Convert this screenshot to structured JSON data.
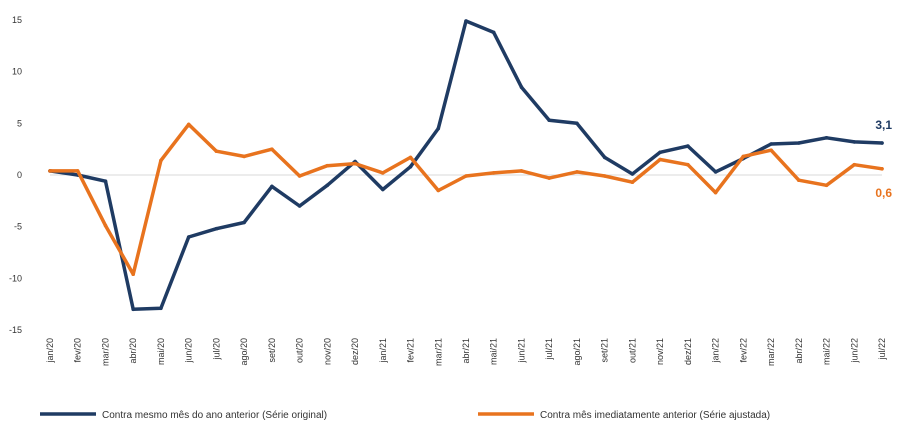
{
  "chart_data": {
    "type": "line",
    "categories": [
      "jan/20",
      "fev/20",
      "mar/20",
      "abr/20",
      "mai/20",
      "jun/20",
      "jul/20",
      "ago/20",
      "set/20",
      "out/20",
      "nov/20",
      "dez/20",
      "jan/21",
      "fev/21",
      "mar/21",
      "abr/21",
      "mai/21",
      "jun/21",
      "jul/21",
      "ago/21",
      "set/21",
      "out/21",
      "nov/21",
      "dez/21",
      "jan/22",
      "fev/22",
      "mar/22",
      "abr/22",
      "mai/22",
      "jun/22",
      "jul/22"
    ],
    "series": [
      {
        "name": "Contra mesmo mês do ano anterior (Série original)",
        "color": "#1f3b63",
        "values": [
          0.4,
          0.0,
          -0.6,
          -13.0,
          -12.9,
          -6.0,
          -5.2,
          -4.6,
          -1.1,
          -3.0,
          -1.0,
          1.3,
          -1.4,
          0.8,
          4.5,
          14.9,
          13.8,
          8.5,
          5.3,
          5.0,
          1.7,
          0.1,
          2.2,
          2.8,
          0.3,
          1.6,
          3.0,
          3.1,
          3.6,
          3.2,
          3.1
        ],
        "end_label": "3,1"
      },
      {
        "name": "Contra mês imediatamente anterior (Série ajustada)",
        "color": "#e8731e",
        "values": [
          0.4,
          0.4,
          -4.9,
          -9.6,
          1.4,
          4.9,
          2.3,
          1.8,
          2.5,
          -0.1,
          0.9,
          1.1,
          0.2,
          1.7,
          -1.5,
          -0.1,
          0.2,
          0.4,
          -0.3,
          0.3,
          -0.1,
          -0.7,
          1.5,
          1.0,
          -1.7,
          1.8,
          2.4,
          -0.5,
          -1.0,
          1.0,
          0.6
        ],
        "end_label": "0,6"
      }
    ],
    "y_ticks": [
      "15",
      "10",
      "5",
      "0",
      "-5",
      "-10",
      "-15"
    ],
    "ylim": [
      -15,
      15
    ],
    "title": "",
    "xlabel": "",
    "ylabel": "",
    "legend_position": "bottom",
    "grid": false
  }
}
